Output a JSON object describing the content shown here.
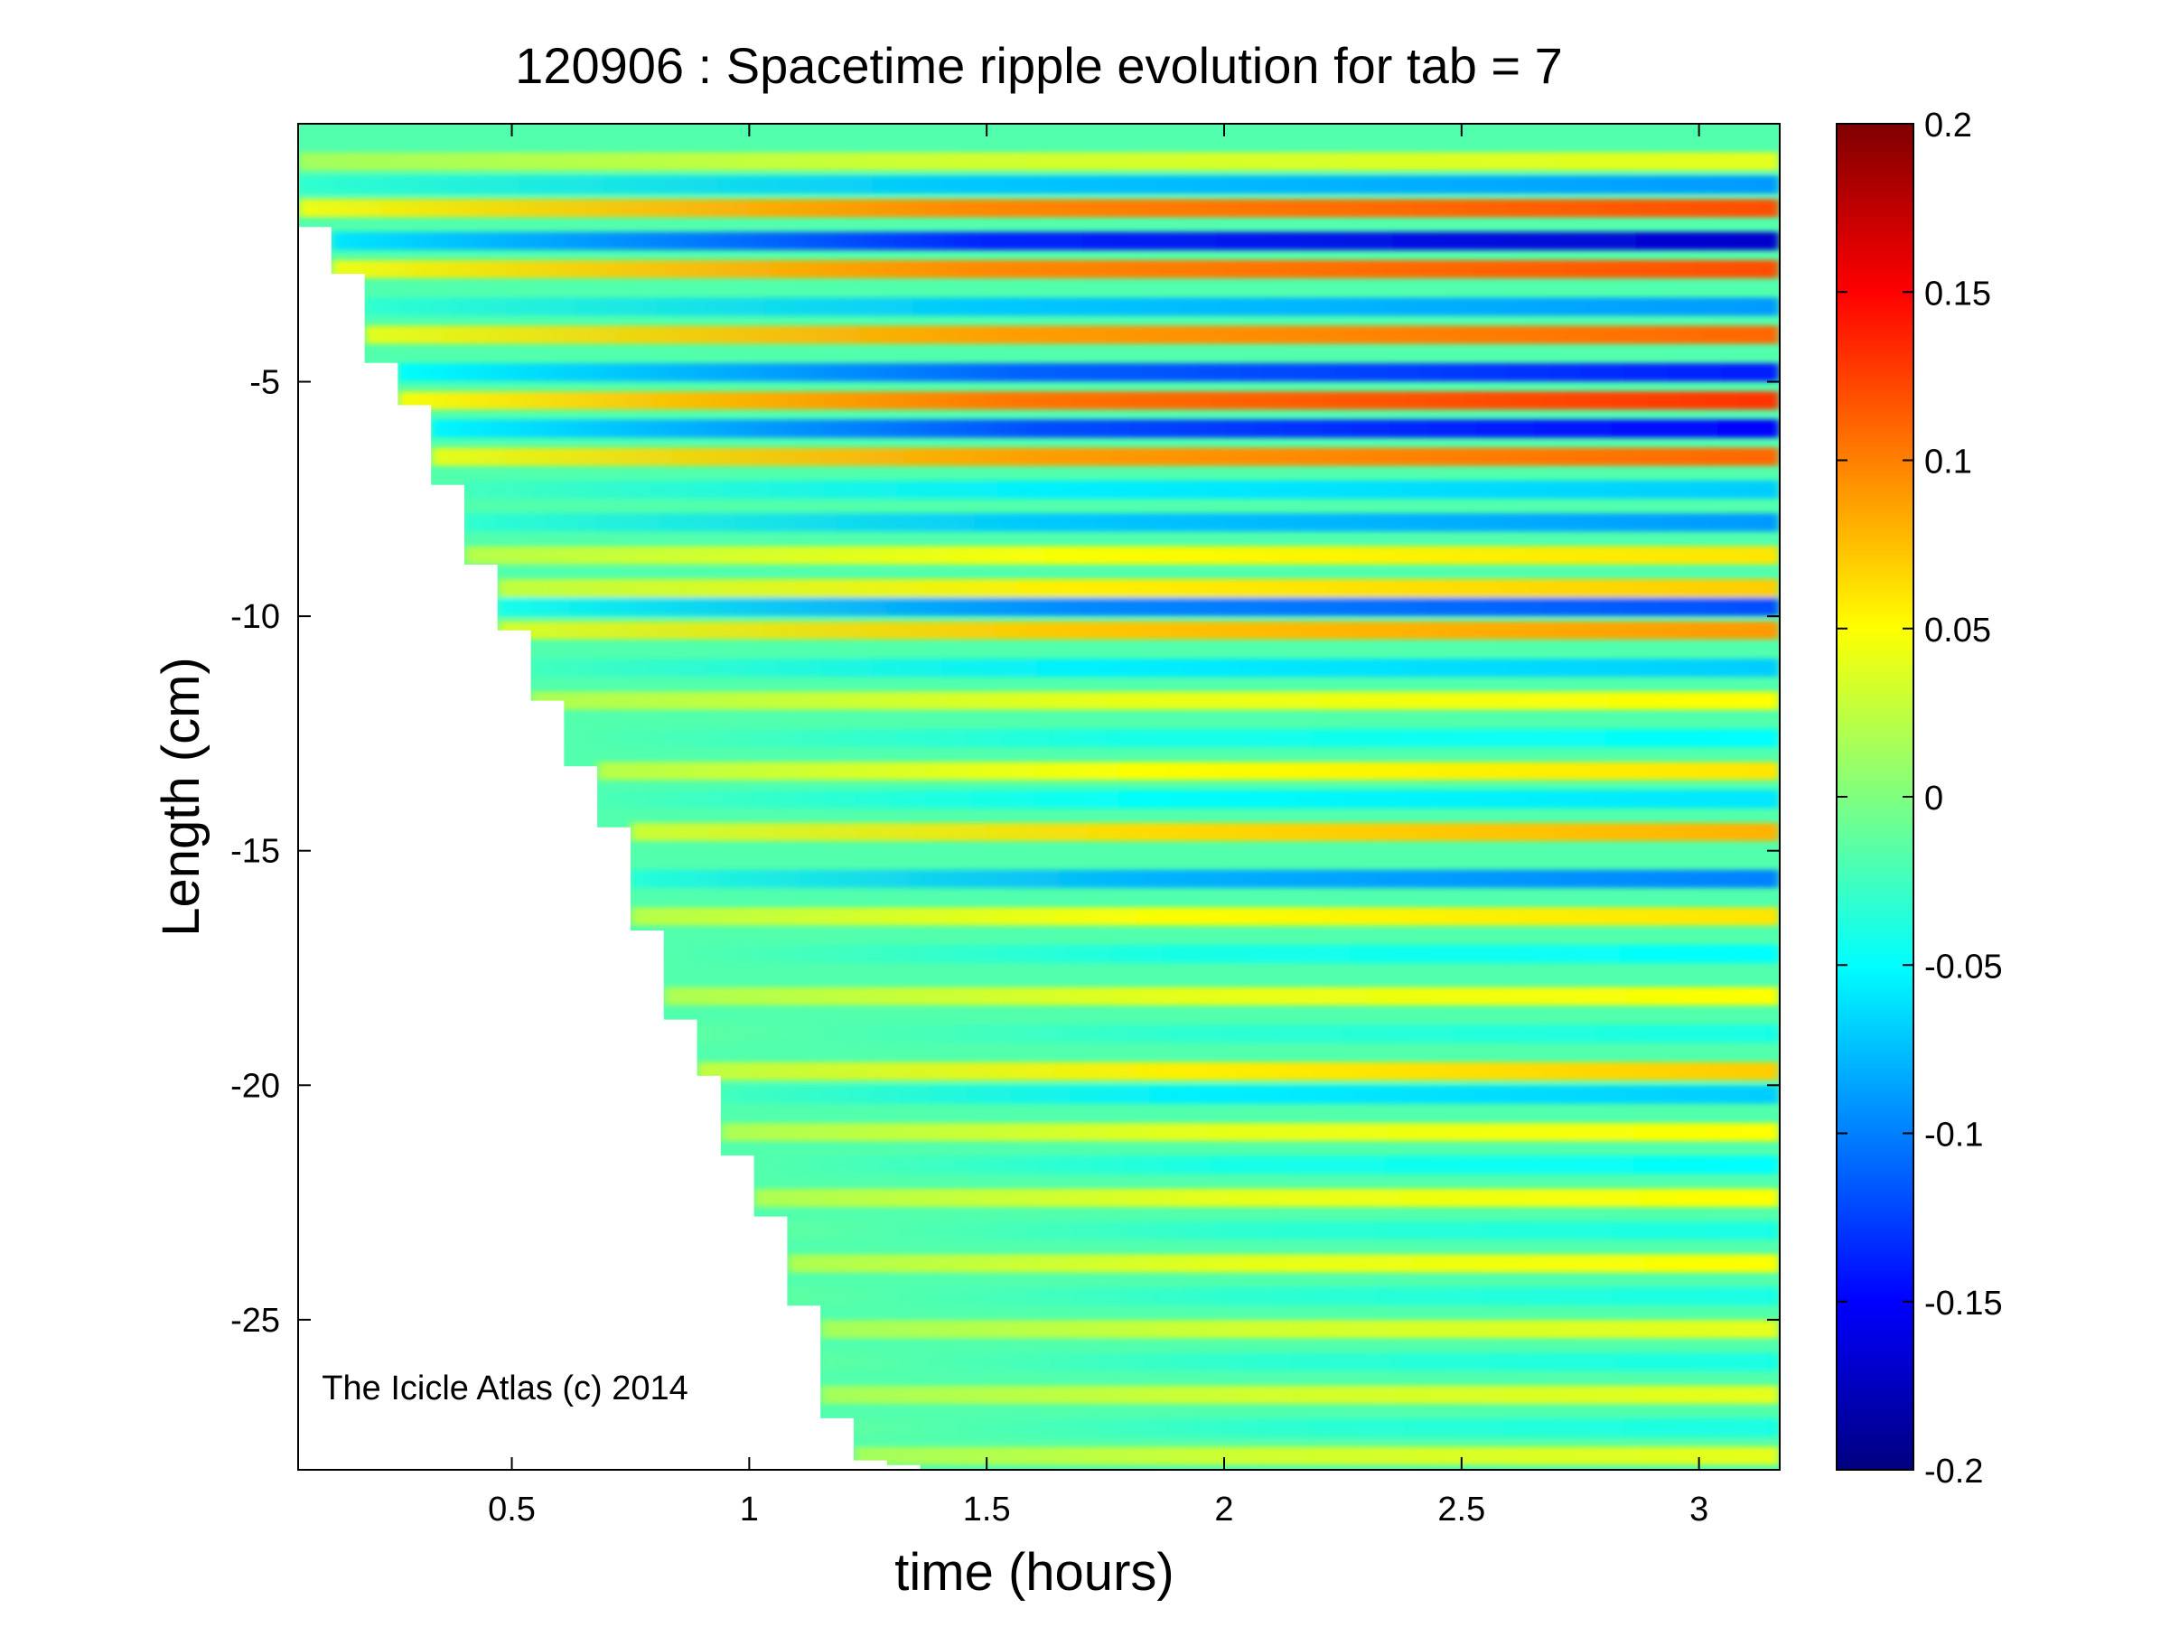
{
  "chart_data": {
    "type": "heatmap",
    "title": "120906 : Spacetime ripple evolution for tab = 7",
    "xlabel": "time (hours)",
    "ylabel": "Length (cm)",
    "xlim": [
      0.05,
      3.17
    ],
    "ylim": [
      -28.2,
      0.5
    ],
    "x_ticks": [
      0.5,
      1,
      1.5,
      2,
      2.5,
      3
    ],
    "x_tick_labels": [
      "0.5",
      "1",
      "1.5",
      "2",
      "2.5",
      "3"
    ],
    "y_ticks": [
      -5,
      -10,
      -15,
      -20,
      -25
    ],
    "y_tick_labels": [
      "-5",
      "-10",
      "-15",
      "-20",
      "-25"
    ],
    "colorbar": {
      "colormap": "jet",
      "clim": [
        -0.2,
        0.2
      ],
      "ticks": [
        0.2,
        0.15,
        0.1,
        0.05,
        0,
        -0.05,
        -0.1,
        -0.15,
        -0.2
      ],
      "tick_labels": [
        "0.2",
        "0.15",
        "0.1",
        "0.05",
        "0",
        "-0.05",
        "-0.1",
        "-0.15",
        "-0.2"
      ]
    },
    "growth_front": {
      "time": [
        0.05,
        0.12,
        0.19,
        0.26,
        0.33,
        0.4,
        0.47,
        0.54,
        0.61,
        0.68,
        0.75,
        0.82,
        0.89,
        0.94,
        1.01,
        1.08,
        1.15,
        1.22,
        1.29,
        1.36,
        1.47
      ],
      "length": [
        -1.7,
        -2.7,
        -4.6,
        -5.5,
        -7.2,
        -8.9,
        -10.3,
        -11.8,
        -13.2,
        -14.5,
        -16.7,
        -18.6,
        -19.8,
        -21.5,
        -22.8,
        -24.7,
        -27.1,
        -28.0,
        -28.1,
        -28.2,
        -28.2
      ]
    },
    "ripples": [
      {
        "length": -0.3,
        "polarity": 1,
        "amplitude": 0.04
      },
      {
        "length": -0.8,
        "polarity": -1,
        "amplitude": 0.09
      },
      {
        "length": -1.3,
        "polarity": 1,
        "amplitude": 0.12
      },
      {
        "length": -2.0,
        "polarity": -1,
        "amplitude": 0.17
      },
      {
        "length": -2.6,
        "polarity": 1,
        "amplitude": 0.12
      },
      {
        "length": -3.4,
        "polarity": -1,
        "amplitude": 0.09
      },
      {
        "length": -4.0,
        "polarity": 1,
        "amplitude": 0.11
      },
      {
        "length": -4.8,
        "polarity": -1,
        "amplitude": 0.14
      },
      {
        "length": -5.4,
        "polarity": 1,
        "amplitude": 0.13
      },
      {
        "length": -6.0,
        "polarity": -1,
        "amplitude": 0.15
      },
      {
        "length": -6.6,
        "polarity": 1,
        "amplitude": 0.11
      },
      {
        "length": -7.3,
        "polarity": -1,
        "amplitude": 0.07
      },
      {
        "length": -8.0,
        "polarity": -1,
        "amplitude": 0.09
      },
      {
        "length": -8.7,
        "polarity": 1,
        "amplitude": 0.06
      },
      {
        "length": -9.4,
        "polarity": 1,
        "amplitude": 0.07
      },
      {
        "length": -9.8,
        "polarity": -1,
        "amplitude": 0.12
      },
      {
        "length": -10.3,
        "polarity": 1,
        "amplitude": 0.09
      },
      {
        "length": -11.1,
        "polarity": -1,
        "amplitude": 0.07
      },
      {
        "length": -11.8,
        "polarity": 1,
        "amplitude": 0.05
      },
      {
        "length": -12.6,
        "polarity": -1,
        "amplitude": 0.05
      },
      {
        "length": -13.3,
        "polarity": 1,
        "amplitude": 0.06
      },
      {
        "length": -13.9,
        "polarity": -1,
        "amplitude": 0.06
      },
      {
        "length": -14.6,
        "polarity": 1,
        "amplitude": 0.08
      },
      {
        "length": -15.6,
        "polarity": -1,
        "amplitude": 0.1
      },
      {
        "length": -16.4,
        "polarity": 1,
        "amplitude": 0.06
      },
      {
        "length": -17.2,
        "polarity": -1,
        "amplitude": 0.05
      },
      {
        "length": -18.1,
        "polarity": 1,
        "amplitude": 0.05
      },
      {
        "length": -18.9,
        "polarity": -1,
        "amplitude": 0.04
      },
      {
        "length": -19.7,
        "polarity": 1,
        "amplitude": 0.07
      },
      {
        "length": -20.2,
        "polarity": -1,
        "amplitude": 0.07
      },
      {
        "length": -21.0,
        "polarity": 1,
        "amplitude": 0.05
      },
      {
        "length": -21.7,
        "polarity": -1,
        "amplitude": 0.05
      },
      {
        "length": -22.4,
        "polarity": 1,
        "amplitude": 0.05
      },
      {
        "length": -23.1,
        "polarity": -1,
        "amplitude": 0.04
      },
      {
        "length": -23.8,
        "polarity": 1,
        "amplitude": 0.05
      },
      {
        "length": -24.5,
        "polarity": -1,
        "amplitude": 0.04
      },
      {
        "length": -25.2,
        "polarity": 1,
        "amplitude": 0.04
      },
      {
        "length": -25.9,
        "polarity": -1,
        "amplitude": 0.04
      },
      {
        "length": -26.6,
        "polarity": 1,
        "amplitude": 0.04
      },
      {
        "length": -27.3,
        "polarity": -1,
        "amplitude": 0.04
      },
      {
        "length": -27.9,
        "polarity": 1,
        "amplitude": 0.04
      }
    ],
    "annotations": [
      {
        "text": "The Icicle Atlas (c) 2014",
        "x": 0.1,
        "y": -26.7
      }
    ]
  }
}
